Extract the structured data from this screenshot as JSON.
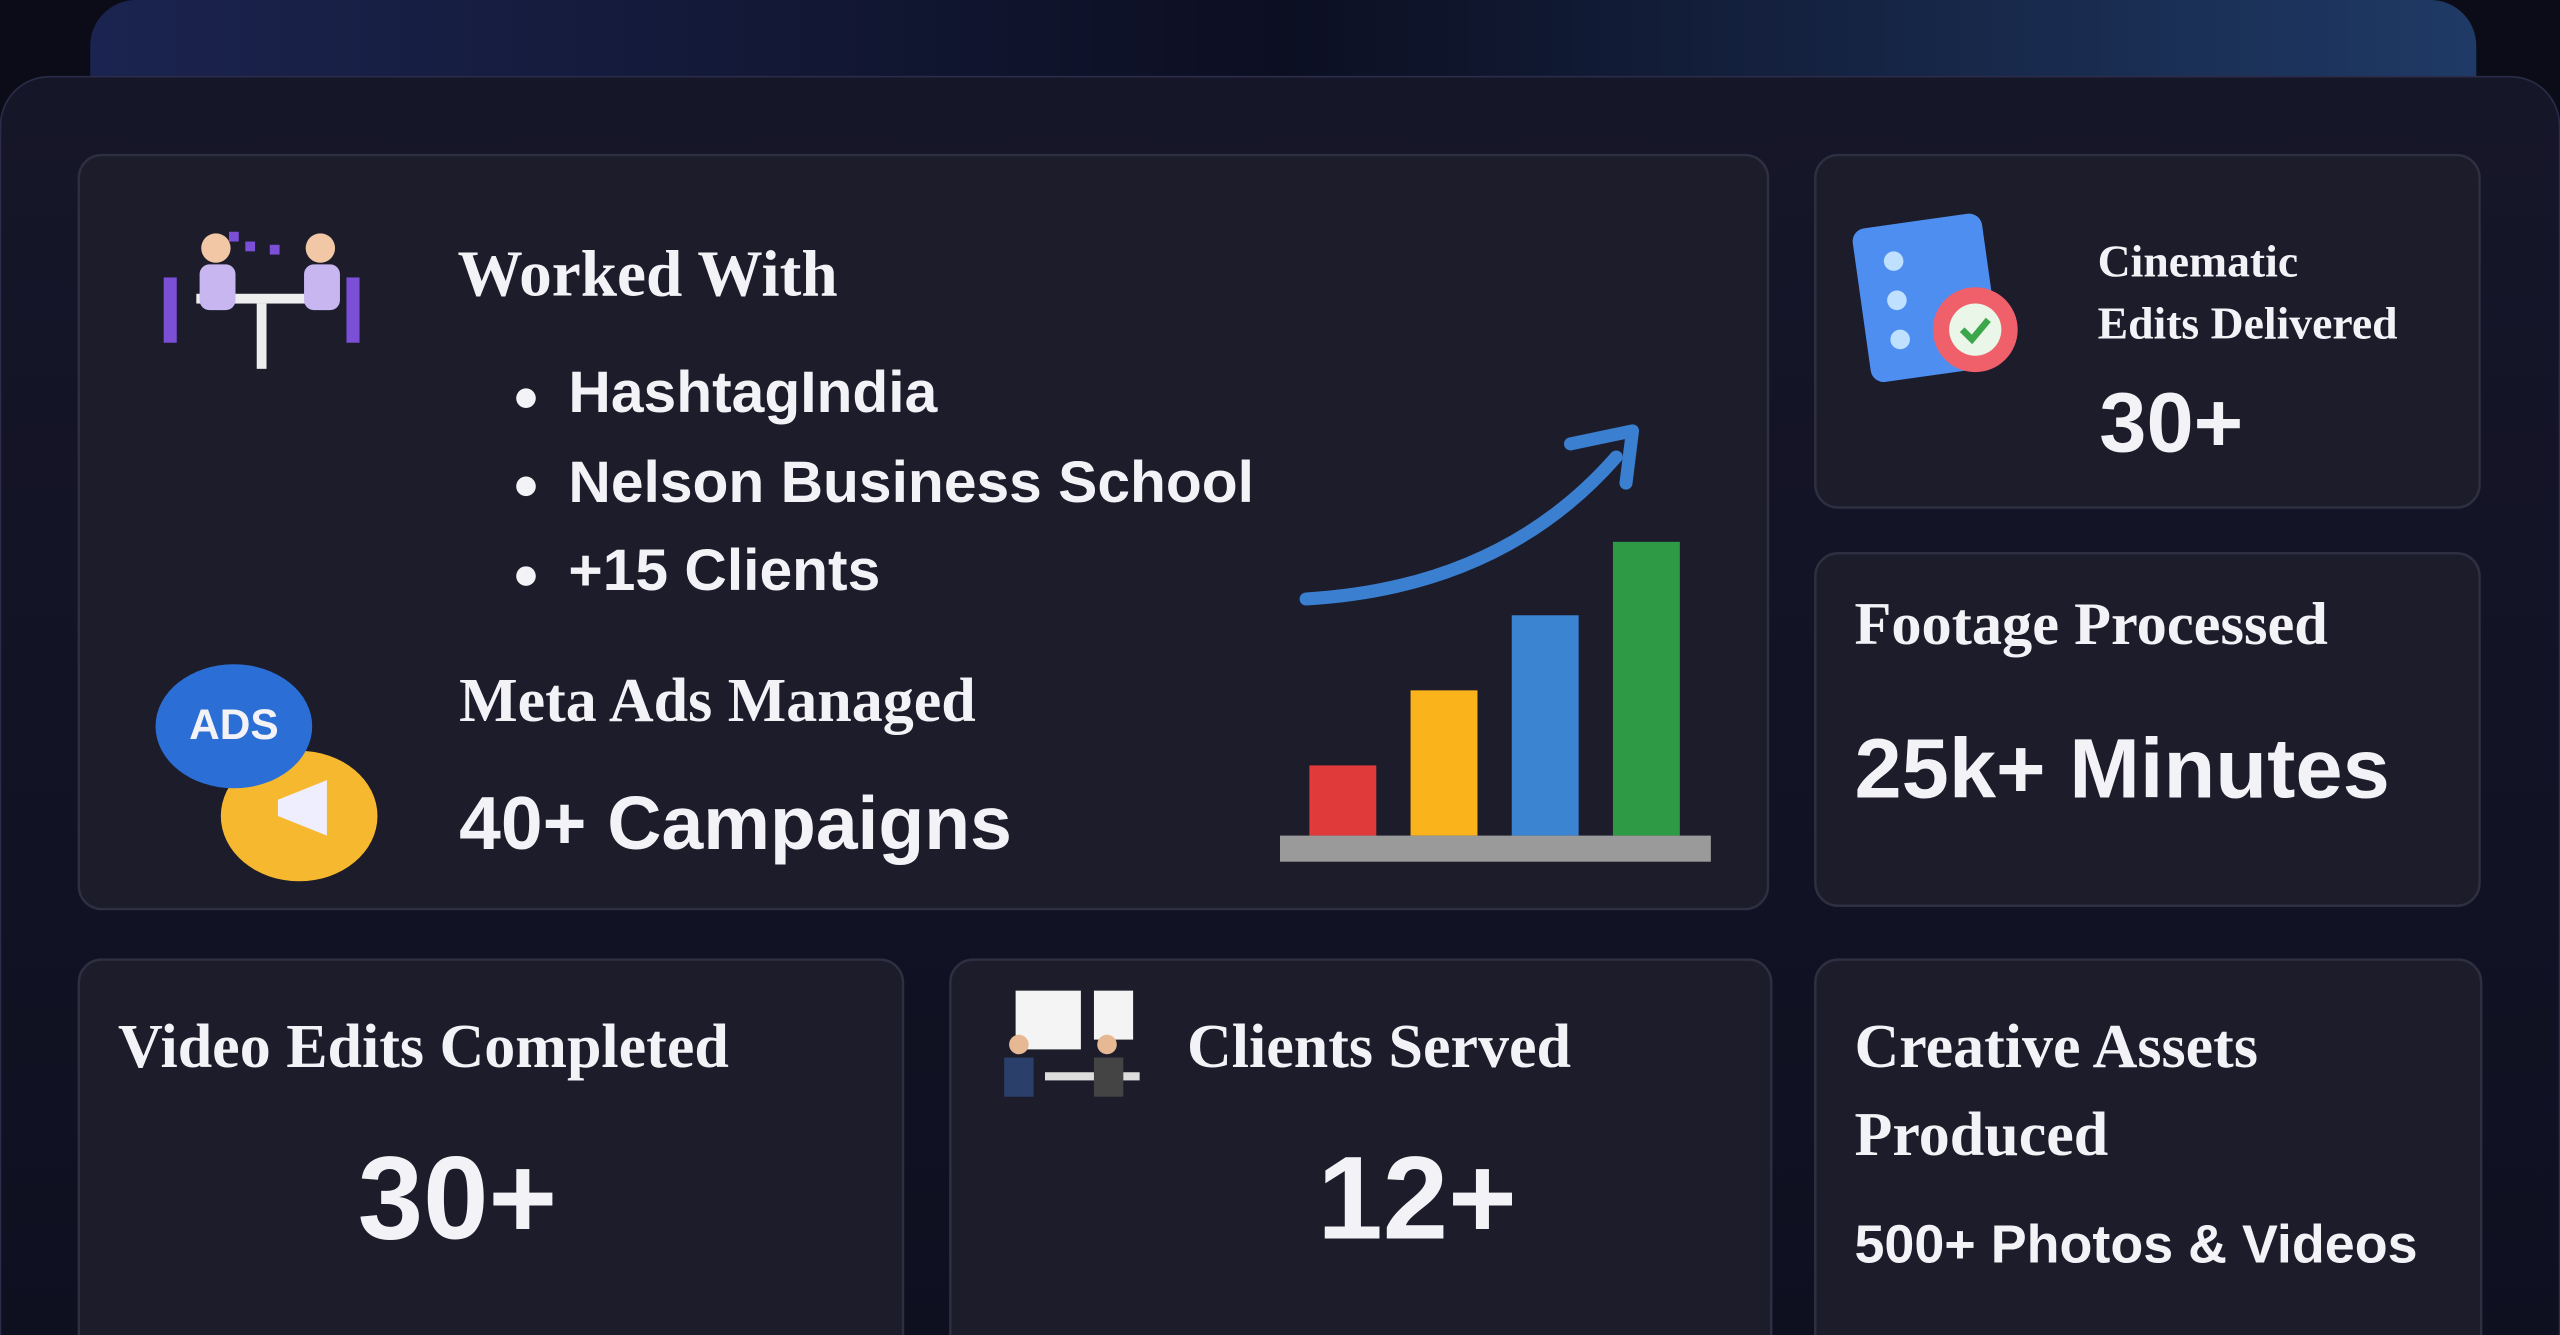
{
  "worked_with": {
    "title": "Worked With",
    "items": [
      "HashtagIndia",
      "Nelson Business School",
      "+15 Clients"
    ]
  },
  "meta_ads": {
    "title": "Meta Ads Managed",
    "value": "40+ Campaigns",
    "icon_label": "ADS"
  },
  "cinematic": {
    "title_lines": [
      "Cinematic",
      "Edits Delivered"
    ],
    "value": "30+"
  },
  "footage": {
    "title": "Footage Processed",
    "value": "25k+ Minutes"
  },
  "video_edits": {
    "title": "Video Edits Completed",
    "value": "30+"
  },
  "clients": {
    "title": "Clients Served",
    "value": "12+"
  },
  "creative": {
    "title_lines": [
      "Creative Assets",
      "Produced"
    ],
    "value": "500+ Photos & Videos"
  }
}
